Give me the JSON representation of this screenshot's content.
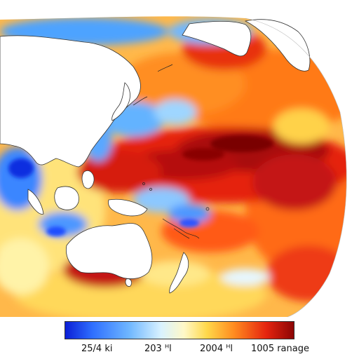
{
  "map": {
    "type": "sea-surface anomaly field (Pacific projection)",
    "palette": [
      "#0b1fd6",
      "#2f6fff",
      "#6fb7ff",
      "#d9f2ff",
      "#fff8c7",
      "#ffd84a",
      "#ff8a1f",
      "#e5240f",
      "#8c0505"
    ]
  },
  "colorbar": {
    "labels": [
      "25/4 ki",
      "203 ᵸl",
      "2004 ᵸl",
      "1005 ranage"
    ]
  }
}
